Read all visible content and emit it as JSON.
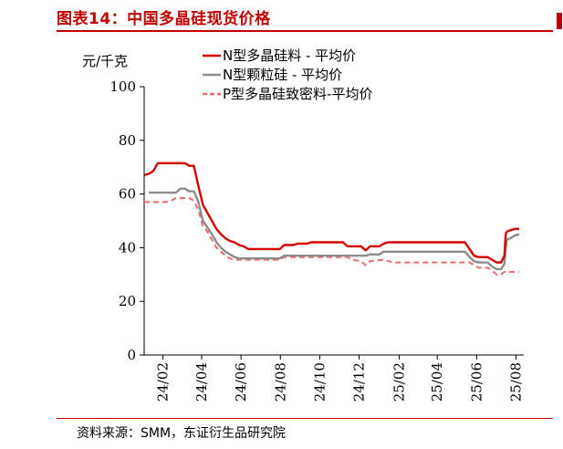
{
  "figure": {
    "title": "图表14：中国多晶硅现货价格",
    "source": "资料来源：SMM，东证衍生品研究院"
  },
  "chart_data": {
    "type": "line",
    "title": "",
    "ylabel": "元/千克",
    "xlabel": "",
    "ylim": [
      0,
      100
    ],
    "yticks": [
      0,
      20,
      40,
      60,
      80,
      100
    ],
    "xticks": [
      "24/02",
      "24/04",
      "24/06",
      "24/08",
      "24/10",
      "24/12",
      "25/02",
      "25/04",
      "25/06",
      "25/08"
    ],
    "legend_position": "top",
    "grid": false,
    "series": [
      {
        "name": "N型多晶硅料 - 平均价",
        "color": "#d40000",
        "style": "solid",
        "points": [
          [
            "2024-01-03",
            67
          ],
          [
            "2024-01-10",
            67.5
          ],
          [
            "2024-01-17",
            68.5
          ],
          [
            "2024-01-24",
            71.5
          ],
          [
            "2024-02-07",
            71.5
          ],
          [
            "2024-03-06",
            71.5
          ],
          [
            "2024-03-13",
            70.5
          ],
          [
            "2024-03-20",
            70.5
          ],
          [
            "2024-03-27",
            63
          ],
          [
            "2024-04-03",
            56
          ],
          [
            "2024-04-10",
            53
          ],
          [
            "2024-04-17",
            50
          ],
          [
            "2024-04-24",
            47
          ],
          [
            "2024-05-01",
            45
          ],
          [
            "2024-05-08",
            43.5
          ],
          [
            "2024-05-15",
            42.5
          ],
          [
            "2024-05-22",
            42
          ],
          [
            "2024-05-29",
            41
          ],
          [
            "2024-06-05",
            40.5
          ],
          [
            "2024-06-12",
            39.5
          ],
          [
            "2024-07-01",
            39.5
          ],
          [
            "2024-07-24",
            39.5
          ],
          [
            "2024-07-31",
            39.5
          ],
          [
            "2024-08-07",
            41
          ],
          [
            "2024-08-21",
            41
          ],
          [
            "2024-08-28",
            41.5
          ],
          [
            "2024-09-11",
            41.5
          ],
          [
            "2024-09-18",
            42
          ],
          [
            "2024-11-06",
            42
          ],
          [
            "2024-11-13",
            40.5
          ],
          [
            "2024-12-04",
            40.5
          ],
          [
            "2024-12-11",
            39
          ],
          [
            "2024-12-18",
            40.5
          ],
          [
            "2025-01-01",
            40.5
          ],
          [
            "2025-01-08",
            41.5
          ],
          [
            "2025-01-15",
            42
          ],
          [
            "2025-05-14",
            42
          ],
          [
            "2025-05-21",
            39.5
          ],
          [
            "2025-05-28",
            37
          ],
          [
            "2025-06-04",
            36.5
          ],
          [
            "2025-06-18",
            36.5
          ],
          [
            "2025-06-25",
            35.5
          ],
          [
            "2025-07-02",
            34.5
          ],
          [
            "2025-07-09",
            34.5
          ],
          [
            "2025-07-14",
            37
          ],
          [
            "2025-07-16",
            45
          ],
          [
            "2025-07-18",
            46
          ],
          [
            "2025-07-23",
            46.5
          ],
          [
            "2025-07-30",
            47
          ],
          [
            "2025-08-06",
            47
          ]
        ]
      },
      {
        "name": "N型颗粒硅 - 平均价",
        "color": "#8c8c8c",
        "style": "solid",
        "points": [
          [
            "2024-01-10",
            60.5
          ],
          [
            "2024-02-21",
            60.5
          ],
          [
            "2024-02-28",
            62
          ],
          [
            "2024-03-06",
            62
          ],
          [
            "2024-03-13",
            61
          ],
          [
            "2024-03-20",
            61
          ],
          [
            "2024-03-27",
            57
          ],
          [
            "2024-04-03",
            50
          ],
          [
            "2024-04-10",
            47.5
          ],
          [
            "2024-04-17",
            45
          ],
          [
            "2024-04-24",
            42
          ],
          [
            "2024-05-01",
            40
          ],
          [
            "2024-05-08",
            38.5
          ],
          [
            "2024-05-15",
            37.5
          ],
          [
            "2024-05-22",
            36.5
          ],
          [
            "2024-05-29",
            36
          ],
          [
            "2024-07-24",
            36
          ],
          [
            "2024-07-31",
            36
          ],
          [
            "2024-08-07",
            37
          ],
          [
            "2024-12-11",
            37
          ],
          [
            "2024-12-18",
            37.5
          ],
          [
            "2025-01-01",
            37.5
          ],
          [
            "2025-01-08",
            38.5
          ],
          [
            "2025-05-14",
            38.5
          ],
          [
            "2025-05-21",
            36.5
          ],
          [
            "2025-05-28",
            35
          ],
          [
            "2025-06-04",
            34.5
          ],
          [
            "2025-06-18",
            34.5
          ],
          [
            "2025-06-25",
            33
          ],
          [
            "2025-07-02",
            32
          ],
          [
            "2025-07-09",
            32
          ],
          [
            "2025-07-14",
            34
          ],
          [
            "2025-07-16",
            40
          ],
          [
            "2025-07-18",
            43
          ],
          [
            "2025-07-23",
            43.5
          ],
          [
            "2025-07-30",
            44.5
          ],
          [
            "2025-08-06",
            45
          ]
        ]
      },
      {
        "name": "P型多晶硅致密料-平均价",
        "color": "#f06a6a",
        "style": "dashed",
        "points": [
          [
            "2024-01-03",
            57
          ],
          [
            "2024-02-07",
            57
          ],
          [
            "2024-02-14",
            57.5
          ],
          [
            "2024-02-21",
            58.5
          ],
          [
            "2024-03-13",
            58.5
          ],
          [
            "2024-03-20",
            57.5
          ],
          [
            "2024-03-27",
            54
          ],
          [
            "2024-04-03",
            48
          ],
          [
            "2024-04-10",
            46
          ],
          [
            "2024-04-17",
            43
          ],
          [
            "2024-04-24",
            40
          ],
          [
            "2024-05-01",
            38.5
          ],
          [
            "2024-05-08",
            37
          ],
          [
            "2024-05-15",
            36
          ],
          [
            "2024-05-22",
            35.5
          ],
          [
            "2024-07-31",
            35.5
          ],
          [
            "2024-08-07",
            36.5
          ],
          [
            "2024-11-13",
            36.5
          ],
          [
            "2024-11-20",
            35.5
          ],
          [
            "2024-12-04",
            35
          ],
          [
            "2024-12-11",
            33.5
          ],
          [
            "2024-12-18",
            35
          ],
          [
            "2025-01-08",
            35.5
          ],
          [
            "2025-01-22",
            34.5
          ],
          [
            "2025-05-21",
            34.5
          ],
          [
            "2025-05-28",
            33.5
          ],
          [
            "2025-06-04",
            32.5
          ],
          [
            "2025-06-18",
            32.5
          ],
          [
            "2025-06-25",
            31.5
          ],
          [
            "2025-07-02",
            30
          ],
          [
            "2025-07-09",
            30
          ],
          [
            "2025-07-14",
            31
          ],
          [
            "2025-07-23",
            31
          ],
          [
            "2025-08-06",
            31
          ]
        ]
      }
    ],
    "x_range": [
      "2024-01-03",
      "2025-08-13"
    ]
  }
}
